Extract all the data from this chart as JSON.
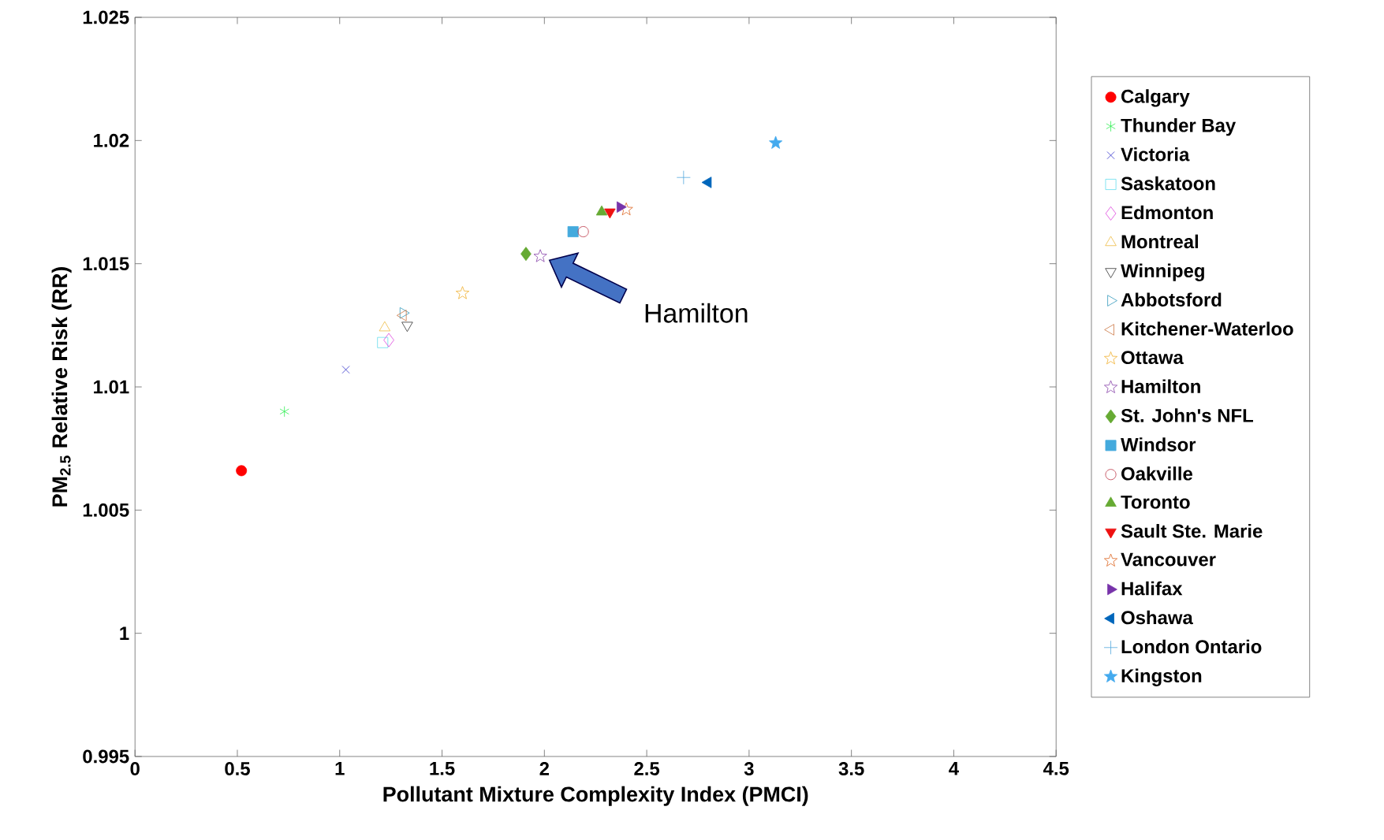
{
  "chart_data": {
    "type": "scatter",
    "xlabel": "Pollutant Mixture Complexity Index (PMCI)",
    "ylabel": "PM$_{2.5}$ Relative Risk (RR)",
    "xlim": [
      0,
      4.5
    ],
    "ylim": [
      0.995,
      1.025
    ],
    "xticks": [
      0,
      0.5,
      1,
      1.5,
      2,
      2.5,
      3,
      3.5,
      4,
      4.5
    ],
    "yticks": [
      0.995,
      1,
      1.005,
      1.01,
      1.015,
      1.02,
      1.025
    ],
    "legend": "right",
    "grid": false,
    "annotations": [
      "Hamilton"
    ],
    "series": [
      {
        "name": "Calgary",
        "color": "#ff0000",
        "marker": "circle",
        "x": [
          0.52
        ],
        "values": [
          1.0066
        ]
      },
      {
        "name": "Thunder Bay",
        "color": "#33ee55",
        "marker": "cross-asterisk",
        "x": [
          0.73
        ],
        "values": [
          1.009
        ]
      },
      {
        "name": "Victoria",
        "color": "#3333cc",
        "marker": "cross",
        "x": [
          1.03
        ],
        "values": [
          1.0107
        ]
      },
      {
        "name": "Saskatoon",
        "color": "#66ddee",
        "marker": "square-open",
        "x": [
          1.21
        ],
        "values": [
          1.0118
        ]
      },
      {
        "name": "Edmonton",
        "color": "#dd44dd",
        "marker": "diamond-open",
        "x": [
          1.24
        ],
        "values": [
          1.0119
        ]
      },
      {
        "name": "Montreal",
        "color": "#eebb44",
        "marker": "triangle-open",
        "x": [
          1.22
        ],
        "values": [
          1.0124
        ]
      },
      {
        "name": "Winnipeg",
        "color": "#333333",
        "marker": "triangle-down-open",
        "x": [
          1.33
        ],
        "values": [
          1.0125
        ]
      },
      {
        "name": "Abbotsford",
        "color": "#3399bb",
        "marker": "triangle-right-open",
        "x": [
          1.31
        ],
        "values": [
          1.013
        ]
      },
      {
        "name": "Kitchener-Waterloo",
        "color": "#cc7744",
        "marker": "triangle-left-open",
        "x": [
          1.31
        ],
        "values": [
          1.0129
        ]
      },
      {
        "name": "Ottawa",
        "color": "#f0b030",
        "marker": "star-open",
        "x": [
          1.6
        ],
        "values": [
          1.0138
        ]
      },
      {
        "name": "Hamilton",
        "color": "#8844aa",
        "marker": "star-open",
        "x": [
          1.98
        ],
        "values": [
          1.0153
        ]
      },
      {
        "name": "St. John's NFL",
        "color": "#66aa33",
        "marker": "diamond",
        "x": [
          1.91
        ],
        "values": [
          1.0154
        ]
      },
      {
        "name": "Windsor",
        "color": "#44aadd",
        "marker": "square",
        "x": [
          2.14
        ],
        "values": [
          1.0163
        ]
      },
      {
        "name": "Oakville",
        "color": "#bb3344",
        "marker": "circle-open",
        "x": [
          2.19
        ],
        "values": [
          1.0163
        ]
      },
      {
        "name": "Toronto",
        "color": "#66aa33",
        "marker": "triangle",
        "x": [
          2.28
        ],
        "values": [
          1.0171
        ]
      },
      {
        "name": "Sault Ste. Marie",
        "color": "#ee1111",
        "marker": "triangle-down",
        "x": [
          2.32
        ],
        "values": [
          1.0171
        ]
      },
      {
        "name": "Vancouver",
        "color": "#dd6622",
        "marker": "star-open",
        "x": [
          2.4
        ],
        "values": [
          1.0172
        ]
      },
      {
        "name": "Halifax",
        "color": "#7733aa",
        "marker": "triangle-right",
        "x": [
          2.37
        ],
        "values": [
          1.0173
        ]
      },
      {
        "name": "Oshawa",
        "color": "#0066bb",
        "marker": "triangle-left",
        "x": [
          2.8
        ],
        "values": [
          1.0183
        ]
      },
      {
        "name": "London Ontario",
        "color": "#55aadd",
        "marker": "plus",
        "x": [
          2.68
        ],
        "values": [
          1.0185
        ]
      },
      {
        "name": "Kingston",
        "color": "#44aaee",
        "marker": "star",
        "x": [
          3.13
        ],
        "values": [
          1.0199
        ]
      }
    ]
  }
}
